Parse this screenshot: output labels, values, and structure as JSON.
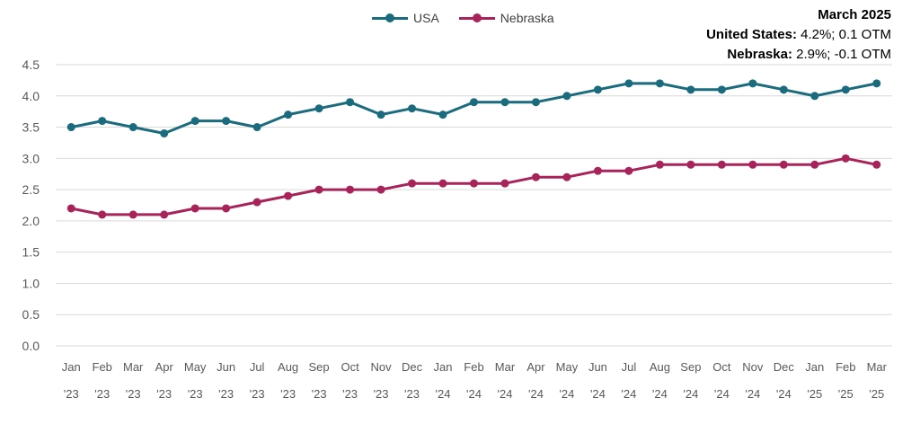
{
  "chart_data": {
    "type": "line",
    "categories": [
      [
        "Jan",
        "'23"
      ],
      [
        "Feb",
        "'23"
      ],
      [
        "Mar",
        "'23"
      ],
      [
        "Apr",
        "'23"
      ],
      [
        "May",
        "'23"
      ],
      [
        "Jun",
        "'23"
      ],
      [
        "Jul",
        "'23"
      ],
      [
        "Aug",
        "'23"
      ],
      [
        "Sep",
        "'23"
      ],
      [
        "Oct",
        "'23"
      ],
      [
        "Nov",
        "'23"
      ],
      [
        "Dec",
        "'23"
      ],
      [
        "Jan",
        "'24"
      ],
      [
        "Feb",
        "'24"
      ],
      [
        "Mar",
        "'24"
      ],
      [
        "Apr",
        "'24"
      ],
      [
        "May",
        "'24"
      ],
      [
        "Jun",
        "'24"
      ],
      [
        "Jul",
        "'24"
      ],
      [
        "Aug",
        "'24"
      ],
      [
        "Sep",
        "'24"
      ],
      [
        "Oct",
        "'24"
      ],
      [
        "Nov",
        "'24"
      ],
      [
        "Dec",
        "'24"
      ],
      [
        "Jan",
        "'25"
      ],
      [
        "Feb",
        "'25"
      ],
      [
        "Mar",
        "'25"
      ]
    ],
    "series": [
      {
        "name": "USA",
        "color": "#1a6b7d",
        "values": [
          3.5,
          3.6,
          3.5,
          3.4,
          3.6,
          3.6,
          3.5,
          3.7,
          3.8,
          3.9,
          3.7,
          3.8,
          3.7,
          3.9,
          3.9,
          3.9,
          4.0,
          4.1,
          4.2,
          4.2,
          4.1,
          4.1,
          4.2,
          4.1,
          4.0,
          4.1,
          4.2
        ]
      },
      {
        "name": "Nebraska",
        "color": "#a8235a",
        "values": [
          2.2,
          2.1,
          2.1,
          2.1,
          2.2,
          2.2,
          2.3,
          2.4,
          2.5,
          2.5,
          2.5,
          2.6,
          2.6,
          2.6,
          2.6,
          2.7,
          2.7,
          2.8,
          2.8,
          2.9,
          2.9,
          2.9,
          2.9,
          2.9,
          2.9,
          3.0,
          2.9
        ]
      }
    ],
    "y_ticks": [
      "0.0",
      "0.5",
      "1.0",
      "1.5",
      "2.0",
      "2.5",
      "3.0",
      "3.5",
      "4.0",
      "4.5"
    ],
    "ylim": [
      0,
      4.5
    ],
    "grid": true,
    "legend_position": "top-center",
    "annotation": {
      "title": "March 2025",
      "line1_label": "United States:",
      "line1_value": " 4.2%; 0.1 OTM",
      "line2_label": "Nebraska:",
      "line2_value": " 2.9%; -0.1 OTM"
    }
  }
}
